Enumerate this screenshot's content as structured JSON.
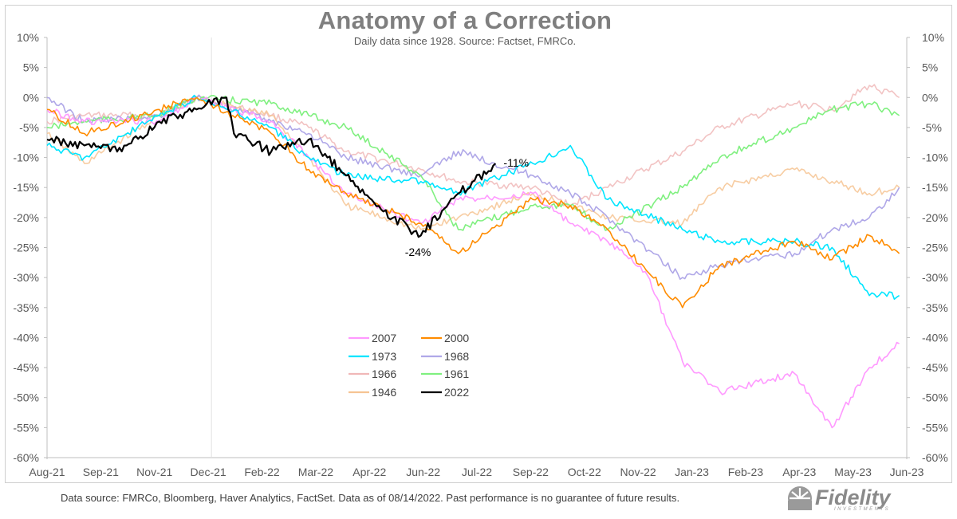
{
  "footer": "Data source: FMRCo, Bloomberg, Haver Analytics, FactSet. Data as of 08/14/2022. Past performance is no guarantee of future results.",
  "logo": {
    "name": "Fidelity",
    "sub": "INVESTMENTS",
    "icon": "fidelity-shield-icon"
  },
  "chart_data": {
    "type": "line",
    "title": "Anatomy of a Correction",
    "subtitle": "Daily data since 1928.  Source: Factset, FMRCo.",
    "xlabel": "",
    "ylabel": "",
    "x_ticks": [
      "Aug-21",
      "Sep-21",
      "Nov-21",
      "Dec-21",
      "Feb-22",
      "Mar-22",
      "Apr-22",
      "Jun-22",
      "Jul-22",
      "Sep-22",
      "Oct-22",
      "Nov-22",
      "Jan-23",
      "Feb-23",
      "Apr-23",
      "May-23",
      "Jun-23"
    ],
    "x_start": "Aug-21",
    "x_end": "Jun-23",
    "peak_marker": "Dec-21",
    "y_ticks": [
      "10%",
      "5%",
      "0%",
      "-5%",
      "-10%",
      "-15%",
      "-20%",
      "-25%",
      "-30%",
      "-35%",
      "-40%",
      "-45%",
      "-50%",
      "-55%",
      "-60%"
    ],
    "ylim": [
      -60,
      10
    ],
    "grid": false,
    "legend_position": "lower-center",
    "annotations": [
      {
        "text": "-24%",
        "x": "Jun-22",
        "y": -24
      },
      {
        "text": "-11%",
        "x": "Aug-22",
        "y": -11
      }
    ],
    "series": [
      {
        "name": "2007",
        "color": "#ff99ff",
        "points": [
          [
            "Aug-21",
            -2
          ],
          [
            "Sep-21",
            -4
          ],
          [
            "Nov-21",
            -4
          ],
          [
            "Dec-21",
            0
          ],
          [
            "Feb-22",
            -4
          ],
          [
            "Mar-22",
            -10
          ],
          [
            "Apr-22",
            -16
          ],
          [
            "Jun-22",
            -21
          ],
          [
            "Jul-22",
            -17
          ],
          [
            "Sep-22",
            -16
          ],
          [
            "Oct-22",
            -21
          ],
          [
            "Nov-22",
            -24
          ],
          [
            "Dec-22",
            -29
          ],
          [
            "Jan-23",
            -44
          ],
          [
            "Feb-23",
            -49
          ],
          [
            "Apr-23",
            -46
          ],
          [
            "May-23",
            -55
          ],
          [
            "Jun-23",
            -45
          ],
          [
            "Jun-23b",
            -41
          ]
        ]
      },
      {
        "name": "2000",
        "color": "#ff8c00",
        "points": [
          [
            "Aug-21",
            -2
          ],
          [
            "Sep-21",
            -6
          ],
          [
            "Nov-21",
            -2
          ],
          [
            "Dec-21",
            0
          ],
          [
            "Feb-22",
            -6
          ],
          [
            "Mar-22",
            -12
          ],
          [
            "Apr-22",
            -16
          ],
          [
            "Jun-22",
            -21
          ],
          [
            "Jul-22",
            -26
          ],
          [
            "Sep-22",
            -17
          ],
          [
            "Oct-22",
            -18
          ],
          [
            "Nov-22",
            -22
          ],
          [
            "Jan-23",
            -35
          ],
          [
            "Feb-23",
            -28
          ],
          [
            "Apr-23",
            -24
          ],
          [
            "May-23",
            -27
          ],
          [
            "Jun-23",
            -23
          ],
          [
            "Jun-23b",
            -26
          ]
        ]
      },
      {
        "name": "1973",
        "color": "#00e5ff",
        "points": [
          [
            "Aug-21",
            -8
          ],
          [
            "Sep-21",
            -10
          ],
          [
            "Nov-21",
            -3
          ],
          [
            "Dec-21",
            0
          ],
          [
            "Feb-22",
            -5
          ],
          [
            "Mar-22",
            -10
          ],
          [
            "Apr-22",
            -13
          ],
          [
            "Jun-22",
            -14
          ],
          [
            "Jul-22",
            -16
          ],
          [
            "Sep-22",
            -11
          ],
          [
            "Oct-22",
            -8
          ],
          [
            "Nov-22",
            -17
          ],
          [
            "Jan-23",
            -22
          ],
          [
            "Feb-23",
            -24
          ],
          [
            "Apr-23",
            -24
          ],
          [
            "May-23",
            -25
          ],
          [
            "Jun-23",
            -33
          ],
          [
            "Jun-23b",
            -33
          ]
        ]
      },
      {
        "name": "1968",
        "color": "#b0a8e8",
        "points": [
          [
            "Aug-21",
            0
          ],
          [
            "Sep-21",
            -4
          ],
          [
            "Nov-21",
            -3
          ],
          [
            "Dec-21",
            0
          ],
          [
            "Feb-22",
            -4
          ],
          [
            "Mar-22",
            -6
          ],
          [
            "Apr-22",
            -10
          ],
          [
            "Jun-22",
            -13
          ],
          [
            "Jul-22",
            -9
          ],
          [
            "Sep-22",
            -13
          ],
          [
            "Oct-22",
            -16
          ],
          [
            "Nov-22",
            -20
          ],
          [
            "Jan-23",
            -30
          ],
          [
            "Feb-23",
            -28
          ],
          [
            "Apr-23",
            -26
          ],
          [
            "May-23",
            -22
          ],
          [
            "Jun-23",
            -20
          ],
          [
            "Jun-23b",
            -15
          ]
        ]
      },
      {
        "name": "1966",
        "color": "#f0b8b8",
        "points": [
          [
            "Aug-21",
            -4
          ],
          [
            "Sep-21",
            -3
          ],
          [
            "Nov-21",
            -3
          ],
          [
            "Dec-21",
            0
          ],
          [
            "Feb-22",
            -3
          ],
          [
            "Mar-22",
            -5
          ],
          [
            "Apr-22",
            -9
          ],
          [
            "Jun-22",
            -12
          ],
          [
            "Jul-22",
            -14
          ],
          [
            "Sep-22",
            -15
          ],
          [
            "Oct-22",
            -18
          ],
          [
            "Nov-22",
            -15
          ],
          [
            "Jan-23",
            -9
          ],
          [
            "Feb-23",
            -5
          ],
          [
            "Apr-23",
            -1
          ],
          [
            "May-23",
            -2
          ],
          [
            "Jun-23",
            2
          ],
          [
            "Jun-23b",
            0
          ]
        ]
      },
      {
        "name": "1961",
        "color": "#80f080",
        "points": [
          [
            "Aug-21",
            -5
          ],
          [
            "Sep-21",
            -4
          ],
          [
            "Nov-21",
            -3
          ],
          [
            "Dec-21",
            0
          ],
          [
            "Feb-22",
            -1
          ],
          [
            "Mar-22",
            -3
          ],
          [
            "Apr-22",
            -5
          ],
          [
            "Jun-22",
            -13
          ],
          [
            "Jul-22",
            -22
          ],
          [
            "Sep-22",
            -18
          ],
          [
            "Oct-22",
            -18
          ],
          [
            "Nov-22",
            -22
          ],
          [
            "Jan-23",
            -15
          ],
          [
            "Feb-23",
            -10
          ],
          [
            "Apr-23",
            -5
          ],
          [
            "May-23",
            -2
          ],
          [
            "Jun-23",
            -1
          ],
          [
            "Jun-23b",
            -3
          ]
        ]
      },
      {
        "name": "1946",
        "color": "#f6c493",
        "points": [
          [
            "Aug-21",
            -6
          ],
          [
            "Sep-21",
            -11
          ],
          [
            "Nov-21",
            -3
          ],
          [
            "Dec-21",
            0
          ],
          [
            "Feb-22",
            -3
          ],
          [
            "Mar-22",
            -10
          ],
          [
            "Apr-22",
            -18
          ],
          [
            "Jun-22",
            -22
          ],
          [
            "Jul-22",
            -20
          ],
          [
            "Sep-22",
            -16
          ],
          [
            "Oct-22",
            -18
          ],
          [
            "Nov-22",
            -20
          ],
          [
            "Jan-23",
            -21
          ],
          [
            "Feb-23",
            -15
          ],
          [
            "Apr-23",
            -12
          ],
          [
            "May-23",
            -14
          ],
          [
            "Jun-23",
            -16
          ],
          [
            "Jun-23b",
            -15
          ]
        ]
      },
      {
        "name": "2022",
        "color": "#000000",
        "points": [
          [
            "Aug-21",
            -7
          ],
          [
            "Sep-21",
            -8
          ],
          [
            "Oct-21",
            -9
          ],
          [
            "Nov-21",
            -4
          ],
          [
            "Dec-21",
            -2
          ],
          [
            "Dec-21b",
            0
          ],
          [
            "Jan-22",
            -6
          ],
          [
            "Feb-22",
            -9
          ],
          [
            "Mar-22",
            -7
          ],
          [
            "Apr-22",
            -13
          ],
          [
            "May-22",
            -19
          ],
          [
            "Jun-22",
            -23
          ],
          [
            "Jul-22",
            -16
          ],
          [
            "Aug-22",
            -11
          ]
        ]
      }
    ]
  }
}
